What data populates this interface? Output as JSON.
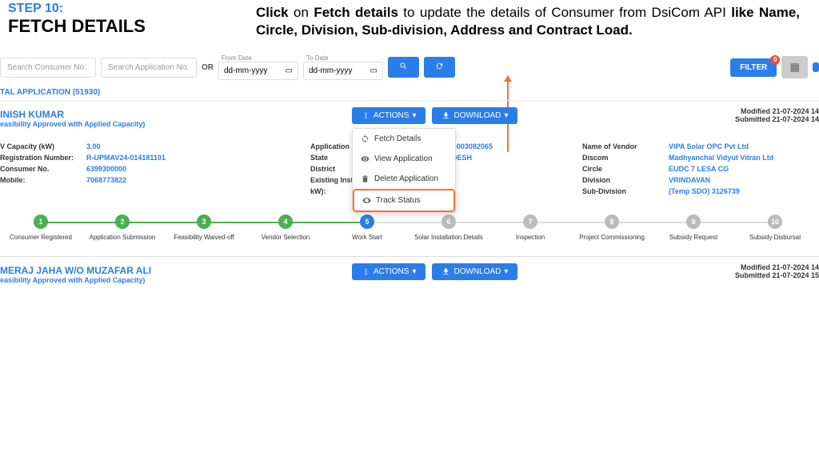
{
  "header": {
    "step_label": "STEP 10:",
    "step_title": "FETCH DETAILS",
    "instruction_prefix": "Click ",
    "instruction_bold1": "on ",
    "instruction_bold2": "Fetch details ",
    "instruction_mid": "to update the details of Consumer from DsiCom API ",
    "instruction_bold3": "like Name, Circle, Division, Sub-division, Address and Contract Load."
  },
  "search": {
    "consumer_placeholder": "Search Consumer No.",
    "application_placeholder": "Search Application No.",
    "or_label": "OR",
    "from_label": "From Date",
    "to_label": "To Date",
    "date_placeholder": "dd-mm-yyyy",
    "filter_label": "FILTER",
    "filter_count": "0"
  },
  "total_label": "TAL APPLICATION (51930)",
  "card1": {
    "name": "INISH KUMAR",
    "status": "easibility Approved with Applied Capacity)",
    "actions_label": "ACTIONS",
    "download_label": "DOWNLOAD",
    "modified": "Modified 21-07-2024 14",
    "submitted": "Submitted 21-07-2024 14",
    "menu": {
      "fetch": "Fetch Details",
      "view": "View Application",
      "delete": "Delete Application",
      "track": "Track Status"
    },
    "col1": {
      "capacity_label": "V Capacity (kW)",
      "capacity_value": "3.00",
      "reg_label": "Registration Number:",
      "reg_value": "R-UPMAV24-014181101",
      "consumer_label": "Consumer No.",
      "consumer_value": "6399300000",
      "mobile_label": "Mobile:",
      "mobile_value": "7068773822"
    },
    "col2": {
      "app_label": "Application",
      "app_value": "AV24-003082065",
      "state_label": "State",
      "state_value": "PRADESH",
      "district_label": "District",
      "existing_label": "Existing Inst",
      "kw_label": "kW):"
    },
    "col3": {
      "vendor_label": "Name of Vendor",
      "vendor_value": "VIPA Solar OPC Pvt Ltd",
      "discom_label": "Discom",
      "discom_value": "Madhyanchal Vidyut Vitran Ltd",
      "circle_label": "Circle",
      "circle_value": "EUDC 7 LESA CG",
      "division_label": "Division",
      "division_value": "VRINDAVAN",
      "subdiv_label": "Sub-Division",
      "subdiv_value": "(Temp SDO) 3126739"
    }
  },
  "steps": [
    {
      "num": "1",
      "label": "Consumer Registered",
      "state": "done"
    },
    {
      "num": "2",
      "label": "Application Submission",
      "state": "done"
    },
    {
      "num": "3",
      "label": "Feasibility Waived-off",
      "state": "done"
    },
    {
      "num": "4",
      "label": "Vendor Selection",
      "state": "done"
    },
    {
      "num": "5",
      "label": "Work Start",
      "state": "current"
    },
    {
      "num": "6",
      "label": "Solar Installation Details",
      "state": "pending"
    },
    {
      "num": "7",
      "label": "Inspection",
      "state": "pending"
    },
    {
      "num": "8",
      "label": "Project Commissioning",
      "state": "pending"
    },
    {
      "num": "9",
      "label": "Subsidy Request",
      "state": "pending"
    },
    {
      "num": "10",
      "label": "Subsidy Disbursal",
      "state": "pending"
    }
  ],
  "card2": {
    "name": "MERAJ JAHA W/O MUZAFAR ALI",
    "status": "easibility Approved with Applied Capacity)",
    "modified": "Modified 21-07-2024 14",
    "submitted": "Submitted 21-07-2024 15"
  }
}
